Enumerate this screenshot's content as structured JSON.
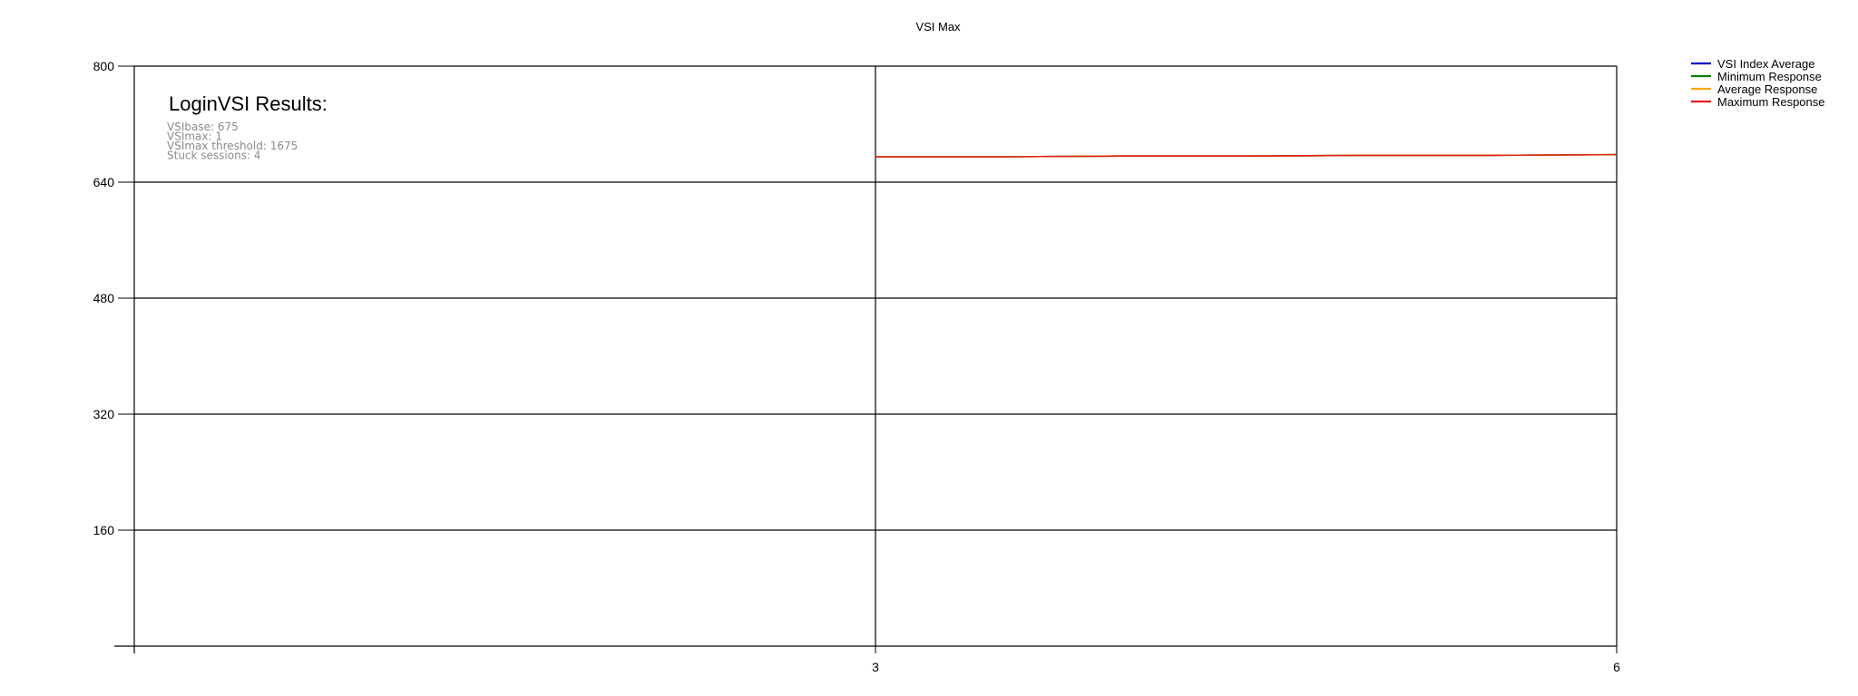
{
  "chart_data": {
    "type": "line",
    "title": "VSI Max",
    "xlabel": "",
    "ylabel": "",
    "xlim": [
      0,
      6
    ],
    "ylim": [
      0,
      800
    ],
    "xticks": [
      3,
      6
    ],
    "yticks": [
      160,
      320,
      480,
      640,
      800
    ],
    "grid": true,
    "legend_position": "top-right",
    "series": [
      {
        "name": "VSI Index Average",
        "color": "#0000cc",
        "x": [
          3,
          3.5,
          4,
          4.5,
          5,
          5.5,
          6
        ],
        "y": [
          675,
          675,
          676,
          676,
          677,
          677,
          678
        ]
      },
      {
        "name": "Minimum Response",
        "color": "#008000",
        "x": [
          3,
          3.5,
          4,
          4.5,
          5,
          5.5,
          6
        ],
        "y": [
          675,
          675,
          676,
          676,
          677,
          677,
          678
        ]
      },
      {
        "name": "Average Response",
        "color": "#ffa500",
        "x": [
          3,
          3.5,
          4,
          4.5,
          5,
          5.5,
          6
        ],
        "y": [
          675,
          675,
          676,
          676,
          677,
          677,
          678
        ]
      },
      {
        "name": "Maximum Response",
        "color": "#e81010",
        "x": [
          3,
          3.5,
          4,
          4.5,
          5,
          5.5,
          6
        ],
        "y": [
          675,
          675,
          676,
          676,
          677,
          677,
          678
        ]
      }
    ],
    "annotation": {
      "heading": "LoginVSI Results:",
      "lines": [
        "VSIbase: 675",
        "VSImax: 1",
        "VSImax threshold: 1675",
        "Stuck sessions: 4"
      ]
    }
  }
}
